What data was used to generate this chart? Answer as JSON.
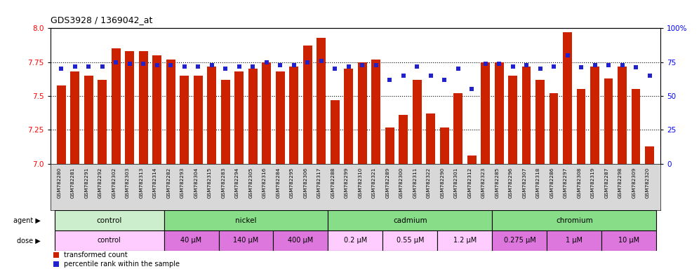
{
  "title": "GDS3928 / 1369042_at",
  "samples": [
    "GSM782280",
    "GSM782281",
    "GSM782291",
    "GSM782292",
    "GSM782302",
    "GSM782303",
    "GSM782313",
    "GSM782314",
    "GSM782282",
    "GSM782293",
    "GSM782304",
    "GSM782315",
    "GSM782283",
    "GSM782294",
    "GSM782305",
    "GSM782316",
    "GSM782284",
    "GSM782295",
    "GSM782306",
    "GSM782317",
    "GSM782288",
    "GSM782299",
    "GSM782310",
    "GSM782321",
    "GSM782289",
    "GSM782300",
    "GSM782311",
    "GSM782322",
    "GSM782290",
    "GSM782301",
    "GSM782312",
    "GSM782323",
    "GSM782285",
    "GSM782296",
    "GSM782307",
    "GSM782318",
    "GSM782286",
    "GSM782297",
    "GSM782308",
    "GSM782319",
    "GSM782287",
    "GSM782298",
    "GSM782309",
    "GSM782320"
  ],
  "bar_values": [
    7.58,
    7.68,
    7.65,
    7.62,
    7.85,
    7.83,
    7.83,
    7.8,
    7.77,
    7.65,
    7.65,
    7.72,
    7.62,
    7.68,
    7.7,
    7.75,
    7.68,
    7.72,
    7.87,
    7.93,
    7.47,
    7.7,
    7.75,
    7.77,
    7.27,
    7.36,
    7.62,
    7.37,
    7.27,
    7.52,
    7.06,
    7.75,
    7.75,
    7.65,
    7.72,
    7.62,
    7.52,
    7.97,
    7.55,
    7.72,
    7.63,
    7.72,
    7.55,
    7.13
  ],
  "percentile_values": [
    70,
    72,
    72,
    72,
    75,
    74,
    74,
    73,
    73,
    72,
    72,
    73,
    70,
    72,
    72,
    75,
    73,
    73,
    75,
    76,
    70,
    72,
    73,
    73,
    62,
    65,
    72,
    65,
    62,
    70,
    55,
    74,
    74,
    72,
    73,
    70,
    72,
    80,
    71,
    73,
    73,
    73,
    71,
    65
  ],
  "ylim_left": [
    7.0,
    8.0
  ],
  "ylim_right": [
    0,
    100
  ],
  "yticks_left": [
    7.0,
    7.25,
    7.5,
    7.75,
    8.0
  ],
  "yticks_right": [
    0,
    25,
    50,
    75,
    100
  ],
  "bar_color": "#cc2200",
  "dot_color": "#2222cc",
  "xtick_bg": "#d8d8d8",
  "agent_groups": [
    {
      "label": "control",
      "start": 0,
      "end": 8,
      "color": "#cceecc"
    },
    {
      "label": "nickel",
      "start": 8,
      "end": 20,
      "color": "#88dd88"
    },
    {
      "label": "cadmium",
      "start": 20,
      "end": 32,
      "color": "#88dd88"
    },
    {
      "label": "chromium",
      "start": 32,
      "end": 44,
      "color": "#88dd88"
    }
  ],
  "dose_groups": [
    {
      "label": "control",
      "start": 0,
      "end": 8,
      "color": "#ffccff"
    },
    {
      "label": "40 μM",
      "start": 8,
      "end": 12,
      "color": "#dd77dd"
    },
    {
      "label": "140 μM",
      "start": 12,
      "end": 16,
      "color": "#dd77dd"
    },
    {
      "label": "400 μM",
      "start": 16,
      "end": 20,
      "color": "#dd77dd"
    },
    {
      "label": "0.2 μM",
      "start": 20,
      "end": 24,
      "color": "#ffccff"
    },
    {
      "label": "0.55 μM",
      "start": 24,
      "end": 28,
      "color": "#ffccff"
    },
    {
      "label": "1.2 μM",
      "start": 28,
      "end": 32,
      "color": "#ffccff"
    },
    {
      "label": "0.275 μM",
      "start": 32,
      "end": 36,
      "color": "#dd77dd"
    },
    {
      "label": "1 μM",
      "start": 36,
      "end": 40,
      "color": "#dd77dd"
    },
    {
      "label": "10 μM",
      "start": 40,
      "end": 44,
      "color": "#dd77dd"
    }
  ],
  "legend": [
    {
      "label": "transformed count",
      "color": "#cc2200"
    },
    {
      "label": "percentile rank within the sample",
      "color": "#2222cc"
    }
  ]
}
